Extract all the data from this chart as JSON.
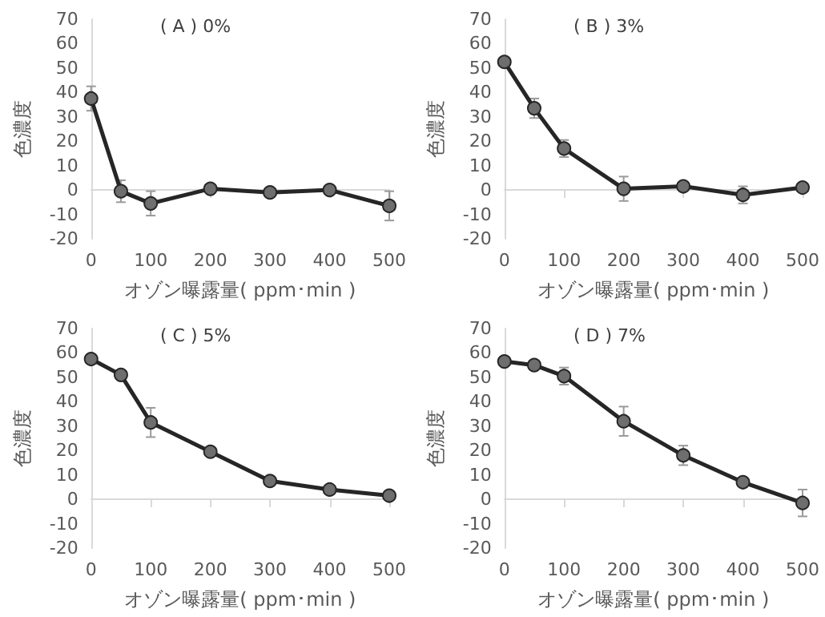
{
  "chart_data": [
    {
      "type": "line",
      "title": "( A ) 0%",
      "xlabel": "オゾン曝露量( ppm･min )",
      "ylabel": "色濃度",
      "x": [
        0,
        50,
        100,
        200,
        300,
        400,
        500
      ],
      "xlim": [
        0,
        500
      ],
      "xticks": [
        0,
        100,
        200,
        300,
        400,
        500
      ],
      "ylim": [
        -20,
        70
      ],
      "yticks": [
        -20,
        -10,
        0,
        10,
        20,
        30,
        40,
        50,
        60,
        70
      ],
      "marker": "circle",
      "line_style": "solid",
      "series": [
        {
          "color": "#262626",
          "values": [
            37.5,
            -0.5,
            -5.5,
            0.5,
            -1,
            0,
            -6.5
          ],
          "errors": [
            5,
            4.5,
            5,
            null,
            null,
            null,
            6
          ]
        }
      ]
    },
    {
      "type": "line",
      "title": "( B ) 3%",
      "xlabel": "オゾン曝露量( ppm･min )",
      "ylabel": "色濃度",
      "x": [
        0,
        50,
        100,
        200,
        300,
        400,
        500
      ],
      "xlim": [
        0,
        500
      ],
      "xticks": [
        0,
        100,
        200,
        300,
        400,
        500
      ],
      "ylim": [
        -20,
        70
      ],
      "yticks": [
        -20,
        -10,
        0,
        10,
        20,
        30,
        40,
        50,
        60,
        70
      ],
      "marker": "circle",
      "line_style": "solid",
      "series": [
        {
          "color": "#262626",
          "values": [
            52.5,
            33.5,
            17,
            0.5,
            1.5,
            -2,
            1
          ],
          "errors": [
            null,
            4,
            3.5,
            5,
            null,
            3.5,
            null
          ]
        }
      ]
    },
    {
      "type": "line",
      "title": "( C ) 5%",
      "xlabel": "オゾン曝露量( ppm･min )",
      "ylabel": "色濃度",
      "x": [
        0,
        50,
        100,
        200,
        300,
        400,
        500
      ],
      "xlim": [
        0,
        500
      ],
      "xticks": [
        0,
        100,
        200,
        300,
        400,
        500
      ],
      "ylim": [
        -20,
        70
      ],
      "yticks": [
        -20,
        -10,
        0,
        10,
        20,
        30,
        40,
        50,
        60,
        70
      ],
      "marker": "circle",
      "line_style": "solid",
      "series": [
        {
          "color": "#262626",
          "values": [
            57.5,
            51,
            31.5,
            19.5,
            7.5,
            4,
            1.5
          ],
          "errors": [
            null,
            null,
            6,
            null,
            null,
            null,
            null
          ]
        }
      ]
    },
    {
      "type": "line",
      "title": "( D ) 7%",
      "xlabel": "オゾン曝露量( ppm･min )",
      "ylabel": "色濃度",
      "x": [
        0,
        50,
        100,
        200,
        300,
        400,
        500
      ],
      "xlim": [
        0,
        500
      ],
      "xticks": [
        0,
        100,
        200,
        300,
        400,
        500
      ],
      "ylim": [
        -20,
        70
      ],
      "yticks": [
        -20,
        -10,
        0,
        10,
        20,
        30,
        40,
        50,
        60,
        70
      ],
      "marker": "circle",
      "line_style": "solid",
      "series": [
        {
          "color": "#262626",
          "values": [
            56.5,
            55,
            50.5,
            32,
            18,
            7,
            -1.5
          ],
          "errors": [
            null,
            null,
            3.5,
            6,
            4,
            null,
            5.5
          ]
        }
      ]
    }
  ]
}
